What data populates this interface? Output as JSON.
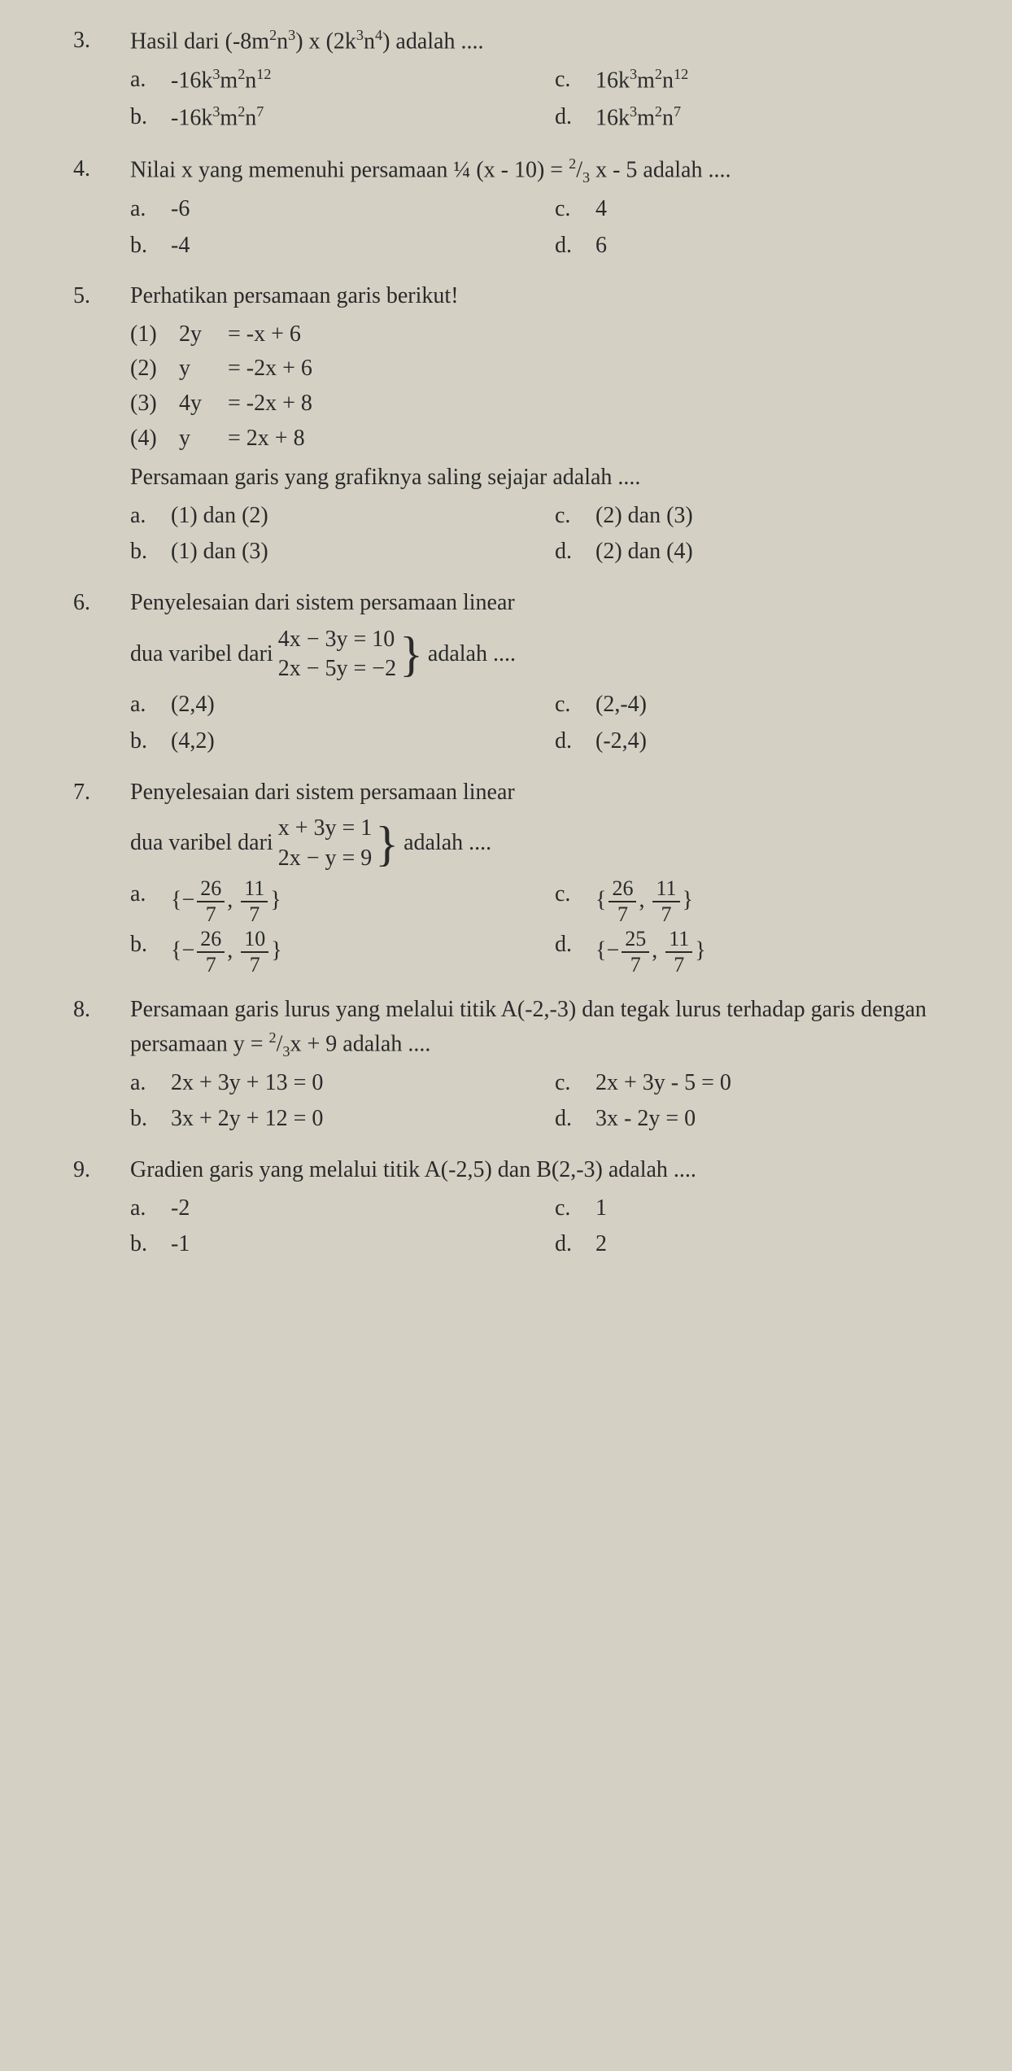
{
  "questions": [
    {
      "number": "3.",
      "stem_html": "Hasil dari (-8m<sup>2</sup>n<sup>3</sup>) x (2k<sup>3</sup>n<sup>4</sup>) adalah ....",
      "options": [
        {
          "letter": "a.",
          "html": "-16k<sup>3</sup>m<sup>2</sup>n<sup>12</sup>"
        },
        {
          "letter": "b.",
          "html": "-16k<sup>3</sup>m<sup>2</sup>n<sup>7</sup>"
        },
        {
          "letter": "c.",
          "html": "16k<sup>3</sup>m<sup>2</sup>n<sup>12</sup>"
        },
        {
          "letter": "d.",
          "html": "16k<sup>3</sup>m<sup>2</sup>n<sup>7</sup>"
        }
      ]
    },
    {
      "number": "4.",
      "stem_html": "Nilai x yang memenuhi persamaan ¼ (x - 10) = <sup>2</sup>/<sub>3</sub> x - 5 adalah ....",
      "options": [
        {
          "letter": "a.",
          "html": "-6"
        },
        {
          "letter": "b.",
          "html": "-4"
        },
        {
          "letter": "c.",
          "html": "4"
        },
        {
          "letter": "d.",
          "html": "6"
        }
      ]
    },
    {
      "number": "5.",
      "stem_html": "Perhatikan persamaan garis berikut!",
      "equations": [
        {
          "n": "(1)",
          "v": "2y",
          "e": "= -x + 6"
        },
        {
          "n": "(2)",
          "v": "y",
          "e": "= -2x + 6"
        },
        {
          "n": "(3)",
          "v": "4y",
          "e": "= -2x + 8"
        },
        {
          "n": "(4)",
          "v": "y",
          "e": "= 2x + 8"
        }
      ],
      "substem": "Persamaan garis yang grafiknya saling sejajar adalah ....",
      "options": [
        {
          "letter": "a.",
          "html": "(1) dan (2)"
        },
        {
          "letter": "b.",
          "html": "(1) dan (3)"
        },
        {
          "letter": "c.",
          "html": "(2) dan (3)"
        },
        {
          "letter": "d.",
          "html": "(2) dan (4)"
        }
      ]
    },
    {
      "number": "6.",
      "stem_pre": "Penyelesaian dari sistem persamaan linear",
      "stem_mid": "dua varibel dari",
      "system": [
        "4x − 3y = 10",
        "2x − 5y = −2"
      ],
      "stem_post": "adalah ....",
      "options": [
        {
          "letter": "a.",
          "html": "(2,4)"
        },
        {
          "letter": "b.",
          "html": "(4,2)"
        },
        {
          "letter": "c.",
          "html": "(2,-4)"
        },
        {
          "letter": "d.",
          "html": "(-2,4)"
        }
      ]
    },
    {
      "number": "7.",
      "stem_pre": "Penyelesaian dari sistem persamaan linear",
      "stem_mid": "dua varibel dari",
      "system": [
        "x + 3y = 1",
        "2x − y = 9"
      ],
      "stem_post": "adalah ....",
      "frac_options": [
        {
          "letter": "a.",
          "sign1": "−",
          "n1": "26",
          "d1": "7",
          "sign2": "",
          "n2": "11",
          "d2": "7"
        },
        {
          "letter": "b.",
          "sign1": "−",
          "n1": "26",
          "d1": "7",
          "sign2": "",
          "n2": "10",
          "d2": "7"
        },
        {
          "letter": "c.",
          "sign1": "",
          "n1": "26",
          "d1": "7",
          "sign2": "",
          "n2": "11",
          "d2": "7"
        },
        {
          "letter": "d.",
          "sign1": "−",
          "n1": "25",
          "d1": "7",
          "sign2": "",
          "n2": "11",
          "d2": "7"
        }
      ]
    },
    {
      "number": "8.",
      "stem_html": "Persamaan garis lurus yang melalui titik A(-2,-3) dan tegak lurus terhadap garis dengan persamaan y = <sup>2</sup>/<sub>3</sub>x + 9 adalah ....",
      "options": [
        {
          "letter": "a.",
          "html": "2x + 3y + 13 = 0"
        },
        {
          "letter": "b.",
          "html": "3x + 2y + 12 = 0"
        },
        {
          "letter": "c.",
          "html": "2x + 3y - 5 = 0"
        },
        {
          "letter": "d.",
          "html": "3x - 2y = 0"
        }
      ]
    },
    {
      "number": "9.",
      "stem_html": "Gradien garis yang melalui titik A(-2,5) dan B(2,-3) adalah ....",
      "options": [
        {
          "letter": "a.",
          "html": "-2"
        },
        {
          "letter": "b.",
          "html": "-1"
        },
        {
          "letter": "c.",
          "html": "1"
        },
        {
          "letter": "d.",
          "html": "2"
        }
      ]
    }
  ]
}
